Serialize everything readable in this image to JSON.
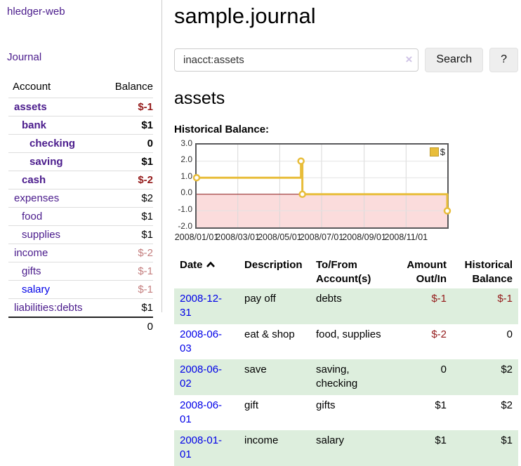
{
  "colors": {
    "link_purple": "#4a1b8c",
    "link_blue": "#0000e8",
    "negative_strong": "#941a1a",
    "negative_light": "#c47e7e",
    "row_stripe_green": "#ddeedd",
    "chart_line_gold": "#e8bd3a",
    "chart_negative_fill": "#fbdcdc",
    "chart_zero_line": "#8c1616",
    "chart_border": "#59595b",
    "button_bg": "#eeeeee",
    "input_border": "#cccccc",
    "clear_icon": "#cfc3e6"
  },
  "sidebar": {
    "brand": "hledger-web",
    "nav_journal_label": "Journal",
    "accounts_table": {
      "headers": {
        "account": "Account",
        "balance": "Balance"
      },
      "rows": [
        {
          "name": "assets",
          "depth": 0,
          "bold": true,
          "balance": "$-1",
          "tone": "neg-strong",
          "link": "purple"
        },
        {
          "name": "bank",
          "depth": 1,
          "bold": true,
          "balance": "$1",
          "tone": "normal",
          "link": "purple"
        },
        {
          "name": "checking",
          "depth": 2,
          "bold": true,
          "balance": "0",
          "tone": "normal",
          "link": "purple"
        },
        {
          "name": "saving",
          "depth": 2,
          "bold": true,
          "balance": "$1",
          "tone": "normal",
          "link": "purple"
        },
        {
          "name": "cash",
          "depth": 1,
          "bold": true,
          "balance": "$-2",
          "tone": "neg-strong",
          "link": "purple"
        },
        {
          "name": "expenses",
          "depth": 0,
          "bold": false,
          "balance": "$2",
          "tone": "normal",
          "link": "purple"
        },
        {
          "name": "food",
          "depth": 1,
          "bold": false,
          "balance": "$1",
          "tone": "normal",
          "link": "purple"
        },
        {
          "name": "supplies",
          "depth": 1,
          "bold": false,
          "balance": "$1",
          "tone": "normal",
          "link": "purple"
        },
        {
          "name": "income",
          "depth": 0,
          "bold": false,
          "balance": "$-2",
          "tone": "neg-light",
          "link": "purple"
        },
        {
          "name": "gifts",
          "depth": 1,
          "bold": false,
          "balance": "$-1",
          "tone": "neg-light",
          "link": "purple"
        },
        {
          "name": "salary",
          "depth": 1,
          "bold": false,
          "balance": "$-1",
          "tone": "neg-light",
          "link": "blue"
        },
        {
          "name": "liabilities:debts",
          "depth": 0,
          "bold": false,
          "balance": "$1",
          "tone": "normal",
          "link": "purple"
        }
      ],
      "total": "0"
    }
  },
  "main": {
    "title": "sample.journal",
    "search": {
      "value": "inacct:assets",
      "placeholder": "",
      "clear_icon": "×",
      "button_label": "Search",
      "help_label": "?"
    },
    "account_heading": "assets",
    "chart_label": "Historical Balance:",
    "register_table": {
      "headers": [
        "Date",
        "Description",
        "To/From Account(s)",
        "Amount Out/In",
        "Historical Balance"
      ],
      "sort_icon": "chevron-up",
      "rows": [
        {
          "date": "2008-12-31",
          "description": "pay off",
          "accounts": "debts",
          "amount": "$-1",
          "amount_tone": "neg-strong",
          "balance": "$-1",
          "balance_tone": "neg-strong"
        },
        {
          "date": "2008-06-03",
          "description": "eat & shop",
          "accounts": "food, supplies",
          "amount": "$-2",
          "amount_tone": "neg-strong",
          "balance": "0",
          "balance_tone": "normal"
        },
        {
          "date": "2008-06-02",
          "description": "save",
          "accounts": "saving, checking",
          "amount": "0",
          "amount_tone": "normal",
          "balance": "$2",
          "balance_tone": "normal"
        },
        {
          "date": "2008-06-01",
          "description": "gift",
          "accounts": "gifts",
          "amount": "$1",
          "amount_tone": "normal",
          "balance": "$2",
          "balance_tone": "normal"
        },
        {
          "date": "2008-01-01",
          "description": "income",
          "accounts": "salary",
          "amount": "$1",
          "amount_tone": "normal",
          "balance": "$1",
          "balance_tone": "normal"
        }
      ]
    }
  },
  "chart_data": {
    "type": "line",
    "step": true,
    "title": "Historical Balance",
    "series": [
      {
        "name": "$",
        "color": "#e8bd3a",
        "points": [
          {
            "date": "2008-01-01",
            "value": 1
          },
          {
            "date": "2008-06-01",
            "value": 2
          },
          {
            "date": "2008-06-03",
            "value": 0
          },
          {
            "date": "2008-12-31",
            "value": -1
          }
        ]
      }
    ],
    "x_range": [
      "2008-01-01",
      "2008-12-31"
    ],
    "ylim": [
      -2,
      3
    ],
    "y_ticks": [
      3.0,
      2.0,
      1.0,
      0.0,
      -1.0,
      -2.0
    ],
    "x_ticks": [
      "2008/01/01",
      "2008/03/01",
      "2008/05/01",
      "2008/07/01",
      "2008/09/01",
      "2008/11/01"
    ],
    "legend": {
      "position": "top-right",
      "entries": [
        "$"
      ]
    },
    "grid": true,
    "negative_region_fill": "#fbdcdc",
    "zero_line_color": "#8c1616"
  }
}
